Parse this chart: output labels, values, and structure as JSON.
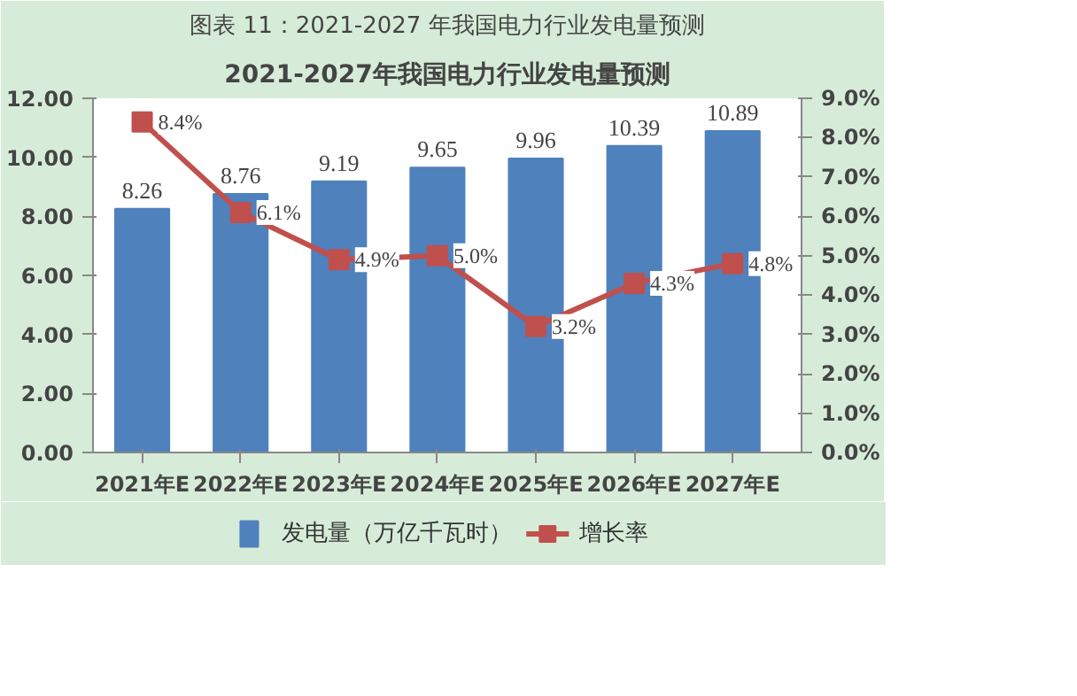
{
  "chart_data": {
    "type": "bar",
    "title": "2021-2027年我国电力行业发电量预测",
    "annotations": [
      "图表 11：2021-2027 年我国电力行业发电量预测"
    ],
    "categories": [
      "2021年E",
      "2022年E",
      "2023年E",
      "2024年E",
      "2025年E",
      "2026年E",
      "2027年E"
    ],
    "series": [
      {
        "name": "发电量（万亿千瓦时）",
        "color": "#4f81bd",
        "values": [
          8.26,
          8.76,
          9.19,
          9.65,
          9.96,
          10.39,
          10.89
        ],
        "value_labels": [
          "8.26",
          "8.76",
          "9.19",
          "9.65",
          "9.96",
          "10.39",
          "10.89"
        ]
      },
      {
        "name": "增长率",
        "type": "line",
        "axis": "y2",
        "color": "#c0504d",
        "marker": "square",
        "values": [
          8.4,
          6.1,
          4.9,
          5.0,
          3.2,
          4.3,
          4.8
        ],
        "value_labels": [
          "8.4%",
          "6.1%",
          "4.9%",
          "5.0%",
          "3.2%",
          "4.3%",
          "4.8%"
        ]
      }
    ],
    "ylim": [
      0,
      12
    ],
    "yticks": [
      {
        "value": 0,
        "label": "0.00"
      },
      {
        "value": 2,
        "label": "2.00"
      },
      {
        "value": 4,
        "label": "4.00"
      },
      {
        "value": 6,
        "label": "6.00"
      },
      {
        "value": 8,
        "label": "8.00"
      },
      {
        "value": 10,
        "label": "10.00"
      },
      {
        "value": 12,
        "label": "12.00"
      }
    ],
    "y2lim": [
      0,
      9
    ],
    "y2ticks": [
      {
        "value": 0,
        "label": "0.0%"
      },
      {
        "value": 1,
        "label": "1.0%"
      },
      {
        "value": 2,
        "label": "2.0%"
      },
      {
        "value": 3,
        "label": "3.0%"
      },
      {
        "value": 4,
        "label": "4.0%"
      },
      {
        "value": 5,
        "label": "5.0%"
      },
      {
        "value": 6,
        "label": "6.0%"
      },
      {
        "value": 7,
        "label": "7.0%"
      },
      {
        "value": 8,
        "label": "8.0%"
      },
      {
        "value": 9,
        "label": "9.0%"
      }
    ],
    "grid": false,
    "legend": "bottom"
  }
}
